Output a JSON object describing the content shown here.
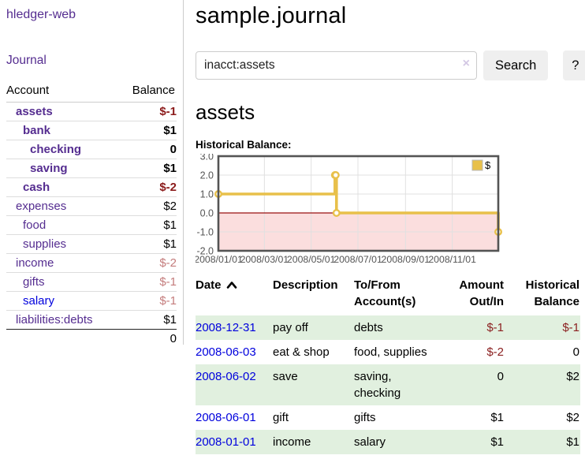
{
  "app": {
    "title": "hledger-web"
  },
  "sidebar": {
    "journal_link": "Journal",
    "headers": [
      "Account",
      "Balance"
    ],
    "accounts": [
      {
        "name": "assets",
        "depth": 0,
        "bold": true,
        "balance": "$-1",
        "balance_style": "neg"
      },
      {
        "name": "bank",
        "depth": 1,
        "bold": true,
        "balance": "$1",
        "balance_style": "pos"
      },
      {
        "name": "checking",
        "depth": 2,
        "bold": true,
        "balance": "0",
        "balance_style": "pos"
      },
      {
        "name": "saving",
        "depth": 2,
        "bold": true,
        "balance": "$1",
        "balance_style": "pos"
      },
      {
        "name": "cash",
        "depth": 1,
        "bold": true,
        "balance": "$-2",
        "balance_style": "neg"
      },
      {
        "name": "expenses",
        "depth": 0,
        "bold": false,
        "balance": "$2",
        "balance_style": "pos"
      },
      {
        "name": "food",
        "depth": 1,
        "bold": false,
        "balance": "$1",
        "balance_style": "pos"
      },
      {
        "name": "supplies",
        "depth": 1,
        "bold": false,
        "balance": "$1",
        "balance_style": "pos"
      },
      {
        "name": "income",
        "depth": 0,
        "bold": false,
        "balance": "$-2",
        "balance_style": "neg-faded"
      },
      {
        "name": "gifts",
        "depth": 1,
        "bold": false,
        "balance": "$-1",
        "balance_style": "neg-faded"
      },
      {
        "name": "salary",
        "depth": 1,
        "bold": false,
        "balance": "$-1",
        "balance_style": "neg-faded",
        "link_style": "blue"
      },
      {
        "name": "liabilities:debts",
        "depth": 0,
        "bold": false,
        "balance": "$1",
        "balance_style": "pos"
      }
    ],
    "total": "0"
  },
  "header": {
    "title": "sample.journal"
  },
  "search": {
    "value": "inacct:assets",
    "clear_icon": "×",
    "button_label": "Search",
    "help_label": "?"
  },
  "account_page": {
    "heading": "assets",
    "chart_label": "Historical Balance:"
  },
  "chart_data": {
    "type": "line",
    "step": true,
    "title": "Historical Balance",
    "series": [
      {
        "name": "$",
        "color": "#e8c04a",
        "points": [
          [
            "2008-01-01",
            1
          ],
          [
            "2008-06-01",
            2
          ],
          [
            "2008-06-02",
            2
          ],
          [
            "2008-06-03",
            0
          ],
          [
            "2008-12-31",
            -1
          ]
        ]
      }
    ],
    "x_start_date": "2008-01-01",
    "x_total_days": 365,
    "x_ticks": [
      "2008/01/01",
      "2008/03/01",
      "2008/05/01",
      "2008/07/01",
      "2008/09/01",
      "2008/11/01"
    ],
    "y_tick_labels": [
      "3.0",
      "2.0",
      "1.0",
      "0.0",
      "-1.0",
      "-2.0"
    ],
    "ylim": [
      -2,
      3
    ],
    "grid": true,
    "negative_region_color": "#fbdede",
    "zero_line_color": "#991111",
    "grid_color": "#e0e0e0",
    "border_color": "#545454",
    "label_color": "#545454",
    "legend": {
      "label": "$",
      "position": "top-right"
    }
  },
  "register": {
    "headers": {
      "date": "Date",
      "description": "Description",
      "tofrom": "To/From Account(s)",
      "amount": "Amount Out/In",
      "balance": "Historical Balance"
    },
    "rows": [
      {
        "date": "2008-12-31",
        "description": "pay off",
        "accounts": "debts",
        "amount": "$-1",
        "amount_neg": true,
        "balance": "$-1",
        "balance_neg": true,
        "highlight": true
      },
      {
        "date": "2008-06-03",
        "description": "eat & shop",
        "accounts": "food, supplies",
        "amount": "$-2",
        "amount_neg": true,
        "balance": "0",
        "balance_neg": false,
        "highlight": false
      },
      {
        "date": "2008-06-02",
        "description": "save",
        "accounts": "saving, checking",
        "amount": "0",
        "amount_neg": false,
        "balance": "$2",
        "balance_neg": false,
        "highlight": true
      },
      {
        "date": "2008-06-01",
        "description": "gift",
        "accounts": "gifts",
        "amount": "$1",
        "amount_neg": false,
        "balance": "$2",
        "balance_neg": false,
        "highlight": false
      },
      {
        "date": "2008-01-01",
        "description": "income",
        "accounts": "salary",
        "amount": "$1",
        "amount_neg": false,
        "balance": "$1",
        "balance_neg": false,
        "highlight": true
      }
    ]
  }
}
